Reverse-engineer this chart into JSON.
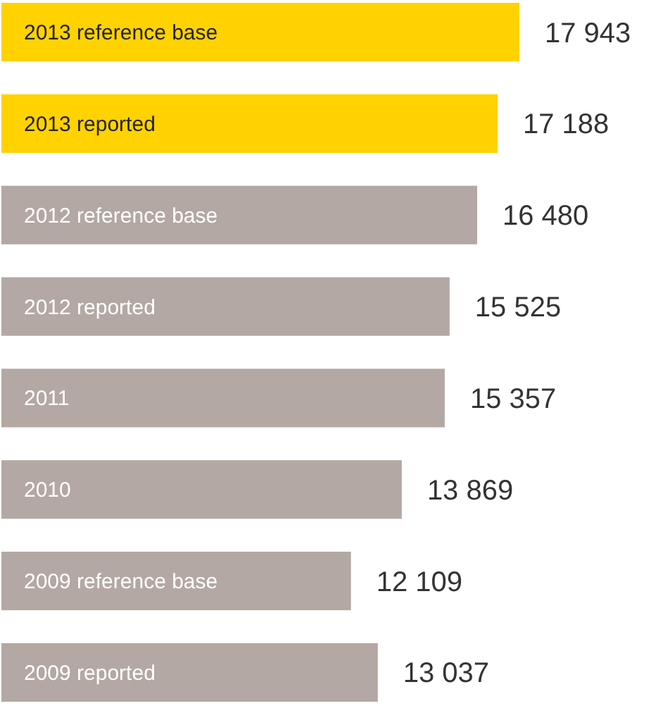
{
  "chart_data": {
    "type": "bar",
    "orientation": "horizontal",
    "categories": [
      "2013 reference base",
      "2013 reported",
      "2012 reference base",
      "2012 reported",
      "2011",
      "2010",
      "2009 reference base",
      "2009 reported"
    ],
    "values": [
      17943,
      17188,
      16480,
      15525,
      15357,
      13869,
      12109,
      13037
    ],
    "colors": [
      "#ffd200",
      "#ffd200",
      "#b3a8a3",
      "#b3a8a3",
      "#b3a8a3",
      "#b3a8a3",
      "#b3a8a3",
      "#b3a8a3"
    ],
    "value_labels": [
      "17 943",
      "17 188",
      "16 480",
      "15 525",
      "15 357",
      "13 869",
      "12 109",
      "13 037"
    ]
  }
}
